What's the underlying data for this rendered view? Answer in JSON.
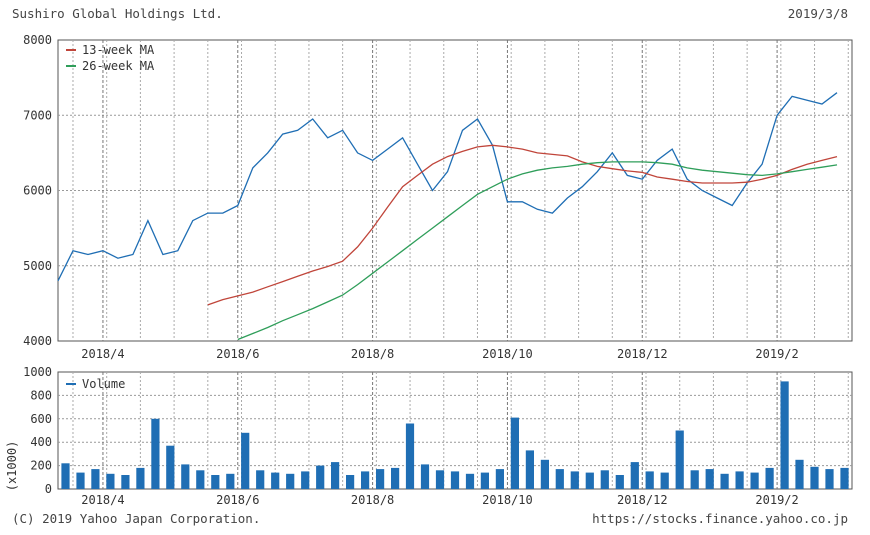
{
  "header": {
    "title": "Sushiro Global Holdings Ltd.",
    "date": "2019/3/8"
  },
  "footer": {
    "copyright": "(C) 2019 Yahoo Japan Corporation.",
    "source": "https://stocks.finance.yahoo.co.jp"
  },
  "chart_data": [
    {
      "type": "line",
      "grid": true,
      "legend": "top-left",
      "x_tick_labels": [
        "2018/4",
        "2018/6",
        "2018/8",
        "2018/10",
        "2018/12",
        "2019/2"
      ],
      "x_tick_weeks": [
        3,
        12,
        21,
        30,
        39,
        48
      ],
      "x_range_weeks": [
        0,
        53
      ],
      "ylim": [
        4000,
        8000
      ],
      "y_ticks": [
        4000,
        5000,
        6000,
        7000,
        8000
      ],
      "series": [
        {
          "name": "",
          "color": "#1f6eb4",
          "values": [
            4800,
            5200,
            5150,
            5200,
            5100,
            5150,
            5600,
            5150,
            5200,
            5600,
            5700,
            5700,
            5800,
            6300,
            6500,
            6750,
            6800,
            6950,
            6700,
            6800,
            6500,
            6400,
            6550,
            6700,
            6350,
            6000,
            6250,
            6800,
            6950,
            6600,
            5850,
            5850,
            5750,
            5700,
            5900,
            6050,
            6250,
            6500,
            6200,
            6150,
            6400,
            6550,
            6150,
            6000,
            5900,
            5800,
            6100,
            6350,
            7000,
            7250,
            7200,
            7150,
            7300
          ]
        },
        {
          "name": "13-week MA",
          "color": "#c0453a",
          "values": [
            4480,
            4550,
            4600,
            4650,
            4720,
            4790,
            4860,
            4930,
            4990,
            5060,
            5250,
            5500,
            5780,
            6050,
            6200,
            6350,
            6450,
            6520,
            6580,
            6600,
            6580,
            6550,
            6500,
            6480,
            6460,
            6380,
            6320,
            6290,
            6260,
            6240,
            6180,
            6150,
            6120,
            6100,
            6100,
            6100,
            6110,
            6150,
            6200,
            6280,
            6350,
            6400,
            6450
          ]
        },
        {
          "name": "26-week MA",
          "color": "#2f9e5a",
          "values": [
            4020,
            4100,
            4180,
            4270,
            4350,
            4430,
            4520,
            4610,
            4750,
            4900,
            5050,
            5200,
            5350,
            5500,
            5650,
            5800,
            5950,
            6050,
            6150,
            6220,
            6270,
            6300,
            6320,
            6350,
            6370,
            6380,
            6380,
            6380,
            6370,
            6350,
            6300,
            6270,
            6250,
            6230,
            6210,
            6200,
            6220,
            6250,
            6280,
            6310,
            6340
          ]
        }
      ]
    },
    {
      "type": "bar",
      "legend": "top-left",
      "ylabel": "(x1000)",
      "ylim": [
        0,
        1000
      ],
      "y_ticks": [
        0,
        200,
        400,
        600,
        800,
        1000
      ],
      "x_tick_labels": [
        "2018/4",
        "2018/6",
        "2018/8",
        "2018/10",
        "2018/12",
        "2019/2"
      ],
      "x_tick_weeks": [
        3,
        12,
        21,
        30,
        39,
        48
      ],
      "series": [
        {
          "name": "Volume",
          "color": "#1f6eb4",
          "values": [
            220,
            140,
            170,
            130,
            120,
            180,
            600,
            370,
            210,
            160,
            120,
            130,
            480,
            160,
            140,
            130,
            150,
            200,
            230,
            120,
            150,
            170,
            180,
            560,
            210,
            160,
            150,
            130,
            140,
            170,
            610,
            330,
            250,
            170,
            150,
            140,
            160,
            120,
            230,
            150,
            140,
            500,
            160,
            170,
            130,
            150,
            140,
            180,
            920,
            250,
            190,
            170,
            180
          ]
        }
      ]
    }
  ]
}
